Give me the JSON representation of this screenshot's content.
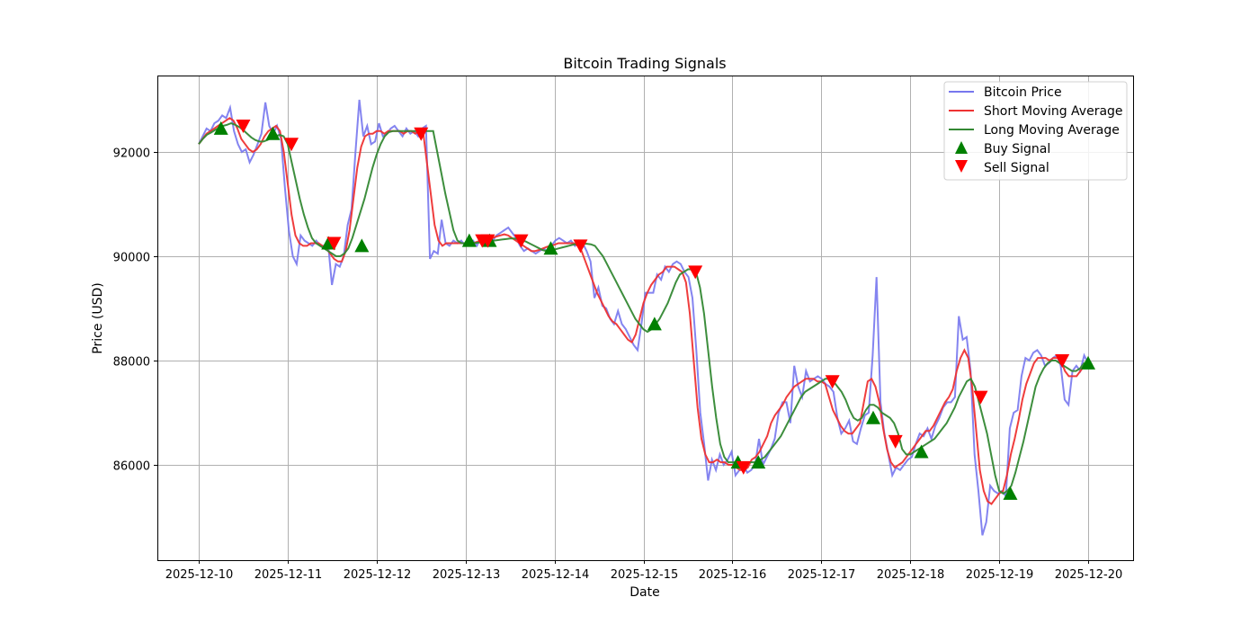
{
  "chart_data": {
    "type": "line",
    "title": "Bitcoin Trading Signals",
    "xlabel": "Date",
    "ylabel": "Price (USD)",
    "xlim": [
      "2025-12-09T12:00",
      "2025-12-20T12:00"
    ],
    "ylim": [
      84200,
      93500
    ],
    "grid": true,
    "legend_position": "upper right",
    "x_ticks": [
      "2025-12-10",
      "2025-12-11",
      "2025-12-12",
      "2025-12-13",
      "2025-12-14",
      "2025-12-15",
      "2025-12-16",
      "2025-12-17",
      "2025-12-18",
      "2025-12-19",
      "2025-12-20"
    ],
    "y_ticks": [
      86000,
      88000,
      90000,
      92000
    ],
    "x_start_day_offset": 0,
    "x_step_days": 0.0833,
    "series": [
      {
        "name": "Bitcoin Price",
        "color": "#7777ee",
        "values": [
          92150,
          92300,
          92450,
          92400,
          92550,
          92600,
          92700,
          92650,
          92850,
          92400,
          92150,
          92000,
          92050,
          91800,
          91950,
          92150,
          92350,
          92950,
          92500,
          92350,
          92500,
          92250,
          91300,
          90500,
          90000,
          89850,
          90400,
          90300,
          90250,
          90200,
          90300,
          90200,
          90200,
          90250,
          89450,
          89850,
          89800,
          90000,
          90600,
          90900,
          92000,
          93000,
          92300,
          92500,
          92150,
          92200,
          92550,
          92300,
          92350,
          92450,
          92500,
          92400,
          92300,
          92450,
          92350,
          92400,
          92300,
          92450,
          92500,
          89950,
          90100,
          90050,
          90700,
          90250,
          90200,
          90300,
          90250,
          90300,
          90200,
          90250,
          90300,
          90200,
          90350,
          90300,
          90250,
          90300,
          90400,
          90450,
          90500,
          90550,
          90450,
          90350,
          90200,
          90100,
          90150,
          90100,
          90050,
          90100,
          90150,
          90100,
          90200,
          90300,
          90350,
          90300,
          90250,
          90300,
          90200,
          90300,
          90250,
          90100,
          89900,
          89200,
          89400,
          89050,
          89000,
          88800,
          88700,
          88950,
          88700,
          88600,
          88450,
          88300,
          88200,
          88700,
          89300,
          89300,
          89300,
          89650,
          89550,
          89800,
          89700,
          89850,
          89900,
          89850,
          89700,
          89600,
          89200,
          88200,
          87000,
          86400,
          85700,
          86100,
          85900,
          86200,
          86000,
          86100,
          86250,
          85800,
          85900,
          86000,
          85850,
          85900,
          86000,
          86500,
          86000,
          86150,
          86300,
          86500,
          87000,
          87200,
          87200,
          86800,
          87900,
          87500,
          87300,
          87800,
          87600,
          87650,
          87700,
          87650,
          87550,
          87500,
          87400,
          86900,
          86600,
          86700,
          86850,
          86450,
          86400,
          86700,
          86950,
          87000,
          88100,
          89600,
          87200,
          86600,
          86200,
          85800,
          85950,
          85900,
          86000,
          86100,
          86150,
          86400,
          86600,
          86550,
          86700,
          86500,
          86750,
          86900,
          87100,
          87200,
          87200,
          87300,
          88850,
          88400,
          88450,
          87800,
          86200,
          85500,
          84650,
          84900,
          85600,
          85500,
          85450,
          85500,
          85400,
          86700,
          87000,
          87050,
          87700,
          88050,
          88000,
          88150,
          88200,
          88100,
          87900,
          87950,
          88050,
          88100,
          87900,
          87250,
          87150,
          87800,
          87900,
          87800,
          88100,
          87950
        ]
      },
      {
        "name": "Short Moving Average",
        "color": "#ee3333",
        "values": [
          92150,
          92250,
          92350,
          92400,
          92450,
          92500,
          92550,
          92600,
          92650,
          92600,
          92450,
          92250,
          92150,
          92050,
          92000,
          92050,
          92150,
          92300,
          92400,
          92450,
          92500,
          92400,
          92000,
          91400,
          90800,
          90400,
          90250,
          90200,
          90200,
          90250,
          90250,
          90250,
          90200,
          90150,
          90050,
          89950,
          89900,
          89900,
          90100,
          90500,
          91100,
          91700,
          92100,
          92300,
          92350,
          92350,
          92400,
          92400,
          92350,
          92400,
          92400,
          92400,
          92400,
          92350,
          92400,
          92400,
          92350,
          92400,
          92400,
          91800,
          91200,
          90600,
          90300,
          90200,
          90250,
          90250,
          90250,
          90250,
          90250,
          90250,
          90250,
          90250,
          90280,
          90300,
          90300,
          90300,
          90350,
          90380,
          90400,
          90420,
          90400,
          90350,
          90300,
          90250,
          90200,
          90150,
          90100,
          90100,
          90120,
          90150,
          90180,
          90200,
          90220,
          90250,
          90250,
          90250,
          90250,
          90250,
          90200,
          90100,
          89900,
          89700,
          89500,
          89300,
          89150,
          89000,
          88850,
          88750,
          88700,
          88600,
          88500,
          88400,
          88350,
          88500,
          88800,
          89100,
          89300,
          89450,
          89550,
          89650,
          89700,
          89800,
          89800,
          89800,
          89750,
          89700,
          89500,
          88900,
          88000,
          87100,
          86500,
          86200,
          86050,
          86050,
          86100,
          86050,
          86050,
          86000,
          86000,
          85950,
          85900,
          85900,
          85950,
          86100,
          86150,
          86250,
          86400,
          86550,
          86800,
          86950,
          87050,
          87150,
          87300,
          87400,
          87500,
          87550,
          87600,
          87650,
          87650,
          87650,
          87600,
          87600,
          87550,
          87300,
          87050,
          86900,
          86750,
          86650,
          86600,
          86600,
          86700,
          86800,
          87200,
          87600,
          87650,
          87500,
          87200,
          86700,
          86300,
          86050,
          85950,
          86000,
          86050,
          86150,
          86250,
          86350,
          86450,
          86550,
          86650,
          86650,
          86750,
          86900,
          87050,
          87200,
          87300,
          87450,
          87800,
          88050,
          88200,
          88050,
          87500,
          86700,
          85900,
          85500,
          85300,
          85250,
          85350,
          85450,
          85500,
          85800,
          86200,
          86500,
          86850,
          87250,
          87550,
          87750,
          87950,
          88050,
          88050,
          88050,
          88000,
          88050,
          88050,
          88000,
          87800,
          87700,
          87700,
          87700,
          87800,
          87900,
          88000
        ]
      },
      {
        "name": "Long Moving Average",
        "color": "#338833",
        "values": [
          92150,
          92250,
          92330,
          92370,
          92420,
          92460,
          92500,
          92520,
          92550,
          92520,
          92480,
          92420,
          92350,
          92280,
          92230,
          92200,
          92200,
          92230,
          92270,
          92300,
          92330,
          92300,
          92150,
          91800,
          91450,
          91100,
          90800,
          90550,
          90350,
          90250,
          90200,
          90150,
          90100,
          90050,
          90000,
          90000,
          90050,
          90150,
          90350,
          90600,
          90850,
          91100,
          91400,
          91700,
          91950,
          92150,
          92300,
          92380,
          92400,
          92400,
          92400,
          92400,
          92400,
          92400,
          92400,
          92400,
          92400,
          92400,
          92400,
          92000,
          91600,
          91200,
          90850,
          90500,
          90300,
          90250,
          90250,
          90250,
          90250,
          90260,
          90270,
          90280,
          90290,
          90300,
          90310,
          90320,
          90330,
          90340,
          90340,
          90330,
          90310,
          90280,
          90240,
          90200,
          90160,
          90120,
          90100,
          90110,
          90130,
          90150,
          90170,
          90190,
          90210,
          90230,
          90240,
          90240,
          90240,
          90230,
          90200,
          90100,
          90000,
          89850,
          89700,
          89550,
          89400,
          89250,
          89100,
          88950,
          88800,
          88700,
          88600,
          88550,
          88600,
          88700,
          88800,
          88950,
          89100,
          89300,
          89500,
          89650,
          89700,
          89750,
          89750,
          89700,
          89400,
          88900,
          88200,
          87500,
          86900,
          86400,
          86150,
          86050,
          86050,
          86050,
          86050,
          86050,
          86050,
          86050,
          86050,
          86100,
          86150,
          86250,
          86350,
          86450,
          86550,
          86700,
          86850,
          87000,
          87150,
          87300,
          87400,
          87450,
          87500,
          87550,
          87600,
          87650,
          87650,
          87600,
          87500,
          87400,
          87250,
          87050,
          86900,
          86850,
          86900,
          87050,
          87150,
          87150,
          87100,
          87000,
          86950,
          86900,
          86800,
          86600,
          86300,
          86200,
          86200,
          86250,
          86300,
          86350,
          86400,
          86450,
          86500,
          86600,
          86700,
          86800,
          86950,
          87100,
          87300,
          87450,
          87600,
          87650,
          87500,
          87200,
          86900,
          86600,
          86200,
          85800,
          85500,
          85450,
          85500,
          85600,
          85850,
          86150,
          86450,
          86800,
          87150,
          87500,
          87700,
          87850,
          87950,
          88000,
          88000,
          87950,
          87900,
          87850,
          87800,
          87800,
          87850,
          87950,
          87950
        ]
      }
    ],
    "signals": {
      "buy": [
        {
          "t": "2025-12-10 06:00",
          "price": 92450
        },
        {
          "t": "2025-12-10 20:00",
          "price": 92350
        },
        {
          "t": "2025-12-11 11:00",
          "price": 90250
        },
        {
          "t": "2025-12-11 20:00",
          "price": 90200
        },
        {
          "t": "2025-12-13 01:00",
          "price": 90300
        },
        {
          "t": "2025-12-13 06:30",
          "price": 90300
        },
        {
          "t": "2025-12-13 23:00",
          "price": 90150
        },
        {
          "t": "2025-12-15 03:00",
          "price": 88700
        },
        {
          "t": "2025-12-16 01:30",
          "price": 86050
        },
        {
          "t": "2025-12-16 07:00",
          "price": 86050
        },
        {
          "t": "2025-12-17 14:00",
          "price": 86900
        },
        {
          "t": "2025-12-18 03:00",
          "price": 86250
        },
        {
          "t": "2025-12-19 03:00",
          "price": 85450
        },
        {
          "t": "2025-12-20 00:00",
          "price": 87950
        }
      ],
      "sell": [
        {
          "t": "2025-12-10 12:00",
          "price": 92500
        },
        {
          "t": "2025-12-11 01:00",
          "price": 92150
        },
        {
          "t": "2025-12-11 12:30",
          "price": 90250
        },
        {
          "t": "2025-12-12 12:00",
          "price": 92350
        },
        {
          "t": "2025-12-13 04:30",
          "price": 90300
        },
        {
          "t": "2025-12-13 06:00",
          "price": 90300
        },
        {
          "t": "2025-12-13 15:00",
          "price": 90300
        },
        {
          "t": "2025-12-14 07:00",
          "price": 90200
        },
        {
          "t": "2025-12-15 14:00",
          "price": 89700
        },
        {
          "t": "2025-12-16 03:00",
          "price": 85950
        },
        {
          "t": "2025-12-17 03:00",
          "price": 87600
        },
        {
          "t": "2025-12-17 20:00",
          "price": 86450
        },
        {
          "t": "2025-12-18 19:00",
          "price": 87300
        },
        {
          "t": "2025-12-19 17:00",
          "price": 88000
        }
      ]
    },
    "legend": [
      "Bitcoin Price",
      "Short Moving Average",
      "Long Moving Average",
      "Buy Signal",
      "Sell Signal"
    ]
  },
  "colors": {
    "buy": "#008000",
    "sell": "#ff0000",
    "grid": "#b0b0b0"
  }
}
